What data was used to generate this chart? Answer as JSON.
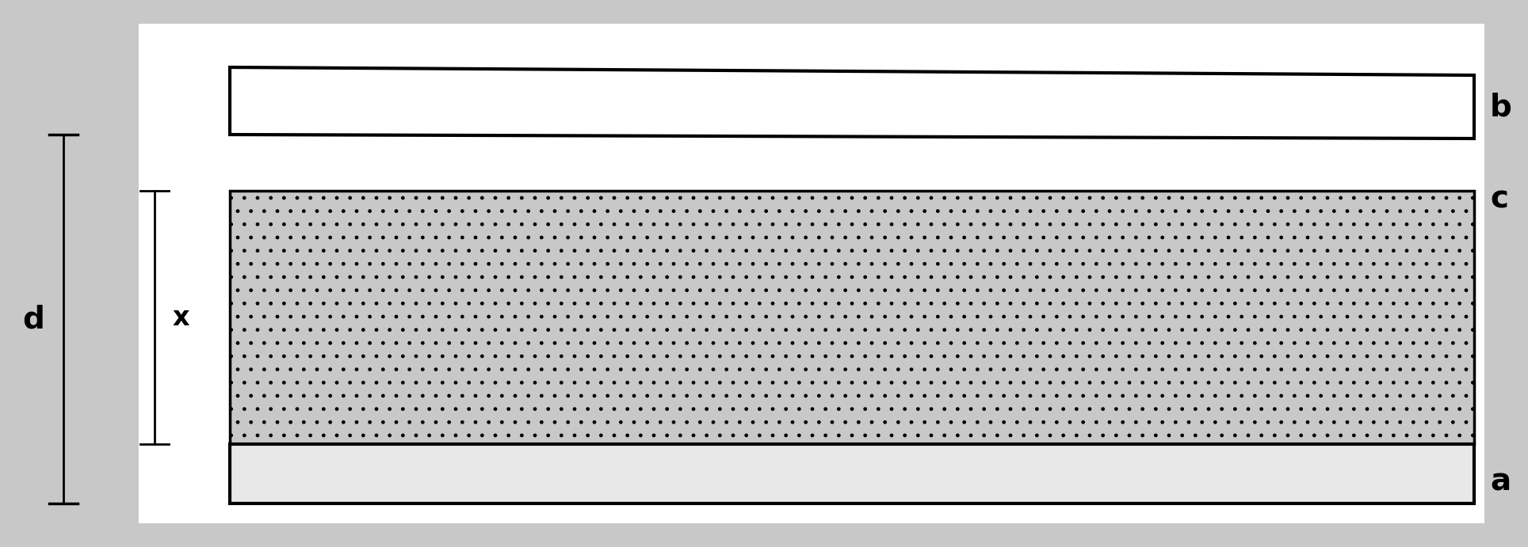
{
  "bg_color": "#c8c8c8",
  "white_color": "#ffffff",
  "plate_color": "#e8e8e8",
  "plate_edge_color": "#000000",
  "dielectric_color": "#c0c0c0",
  "dielectric_hatch": ".",
  "dielectric_edge_color": "#000000",
  "fig_width": 19.28,
  "fig_height": 6.91,
  "label_b": "b",
  "label_a": "a",
  "label_c": "c",
  "label_d": "d",
  "label_x": "x",
  "label_fontsize": 28,
  "lw_plate": 3.0,
  "lw_dielectric": 2.5
}
